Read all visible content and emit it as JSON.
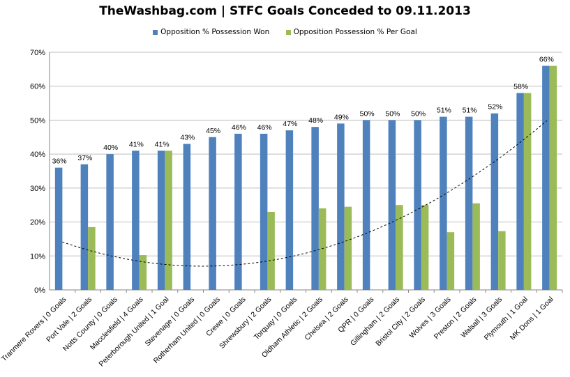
{
  "chart_data": {
    "type": "bar",
    "title": "TheWashbag.com | STFC Goals Conceded to 09.11.2013",
    "categories": [
      "Tranmere Rovers | 0 Goals",
      "Port Vale | 2 Goals",
      "Notts County | 0 Goals",
      "Macclesfield | 4 Goals",
      "Peterborough United | 1 Goal",
      "Stevenage | 0 Goals",
      "Rotherham United | 0 Goals",
      "Crewe | 0 Goals",
      "Shrewsbury | 2 Goals",
      "Torquay | 0 Goals",
      "Oldham Athletic | 2 Goals",
      "Chelsea | 2 Goals",
      "QPR | 0 Goals",
      "Gillingham | 2 Goals",
      "Bristol City | 2 Goals",
      "Wolves | 3 Goals",
      "Preston | 2 Goals",
      "Walsall | 3 Goals",
      "Plymouth | 1 Goal",
      "MK Dons | 1 Goal"
    ],
    "series": [
      {
        "name": "Opposition % Possession Won",
        "color": "#4F81BD",
        "values": [
          36,
          37,
          40,
          41,
          41,
          43,
          45,
          46,
          46,
          47,
          48,
          49,
          50,
          50,
          50,
          51,
          51,
          52,
          58,
          66
        ],
        "data_labels": [
          "36%",
          "37%",
          "40%",
          "41%",
          "41%",
          "43%",
          "45%",
          "46%",
          "46%",
          "47%",
          "48%",
          "49%",
          "50%",
          "50%",
          "50%",
          "51%",
          "51%",
          "52%",
          "58%",
          "66%"
        ]
      },
      {
        "name": "Opposition Possession % Per Goal",
        "color": "#9BBB59",
        "values": [
          0,
          18.5,
          0,
          10.25,
          41,
          0,
          0,
          0,
          23,
          0,
          24,
          24.5,
          0,
          25,
          25,
          17,
          25.5,
          17.3,
          58,
          66
        ]
      }
    ],
    "trendline": {
      "type": "polynomial",
      "style": "dashed",
      "color": "#000000",
      "of_series": "Opposition Possession % Per Goal"
    },
    "yticks": [
      "0%",
      "10%",
      "20%",
      "30%",
      "40%",
      "50%",
      "60%",
      "70%"
    ],
    "ylim": [
      0,
      70
    ],
    "grid": true,
    "legend": "top"
  }
}
